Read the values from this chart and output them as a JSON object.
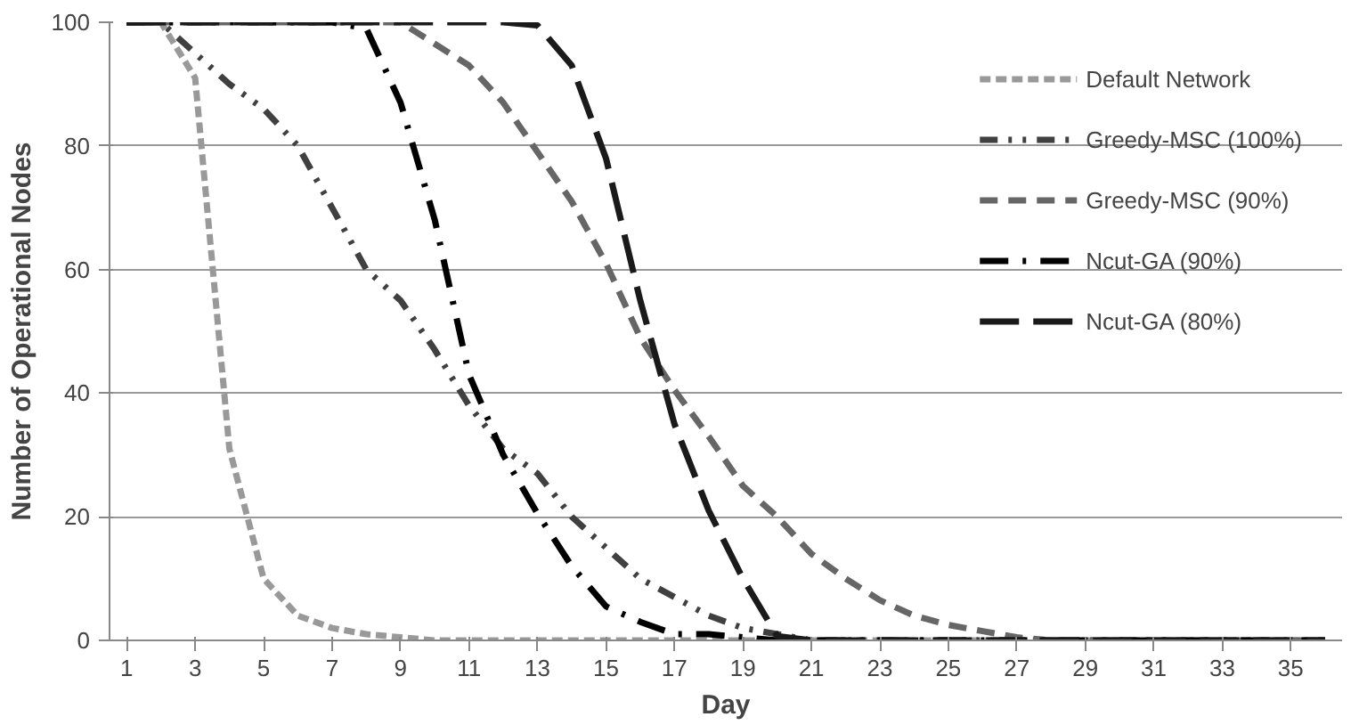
{
  "chart_data": {
    "type": "line",
    "xlabel": "Day",
    "ylabel": "Number of Operational Nodes",
    "x": [
      1,
      2,
      3,
      4,
      5,
      6,
      7,
      8,
      9,
      10,
      11,
      12,
      13,
      14,
      15,
      16,
      17,
      18,
      19,
      20,
      21,
      22,
      23,
      24,
      25,
      26,
      27,
      28,
      29,
      30,
      31,
      32,
      33,
      34,
      35,
      36
    ],
    "xlim": [
      0.5,
      36.5
    ],
    "xticks": [
      1,
      3,
      5,
      7,
      9,
      11,
      13,
      15,
      17,
      19,
      21,
      23,
      25,
      27,
      29,
      31,
      33,
      35
    ],
    "ylim": [
      0,
      100
    ],
    "yticks": [
      0,
      20,
      40,
      60,
      80,
      100
    ],
    "grid": "y",
    "legend": "top right",
    "marker": "none",
    "series": [
      {
        "name": "Default Network",
        "color": "#999999",
        "line_style": "dotted",
        "values": [
          100,
          100,
          91,
          31,
          10,
          4,
          2,
          1,
          0.5,
          0,
          0,
          0,
          0,
          0,
          0,
          0,
          0,
          0,
          0,
          0,
          0,
          0,
          0,
          0,
          0,
          0,
          0,
          0,
          0,
          0,
          0,
          0,
          0,
          0,
          0,
          0
        ]
      },
      {
        "name": "Greedy-MSC (100%)",
        "color": "#404040",
        "line_style": "dashdotdot",
        "values": [
          100,
          100,
          95,
          90,
          86,
          80,
          70,
          60,
          55,
          47,
          38,
          31,
          27,
          20,
          15,
          10,
          7,
          4,
          2,
          1,
          0,
          0,
          0,
          0,
          0,
          0,
          0,
          0,
          0,
          0,
          0,
          0,
          0,
          0,
          0,
          0
        ]
      },
      {
        "name": "Greedy-MSC (90%)",
        "color": "#666666",
        "line_style": "dashed",
        "values": [
          100,
          100,
          100,
          100,
          100,
          100,
          100,
          100,
          100,
          96.5,
          93,
          87,
          79,
          71,
          61,
          49,
          40.5,
          33,
          25,
          20,
          14,
          10,
          6.5,
          4,
          2.5,
          1.5,
          0.5,
          0,
          0,
          0,
          0,
          0,
          0,
          0,
          0,
          0
        ]
      },
      {
        "name": "Ncut-GA (90%)",
        "color": "#000000",
        "line_style": "dashdot",
        "values": [
          100,
          100,
          100,
          100,
          100,
          100,
          100,
          99,
          87,
          68,
          43,
          30,
          20.5,
          12,
          5.5,
          3,
          1,
          1,
          0.5,
          0,
          0,
          0,
          0,
          0,
          0,
          0,
          0,
          0,
          0,
          0,
          0,
          0,
          0,
          0,
          0,
          0
        ]
      },
      {
        "name": "Ncut-GA (80%)",
        "color": "#1a1a1a",
        "line_style": "longdash",
        "values": [
          100,
          100,
          100,
          100,
          100,
          100,
          100,
          100,
          100,
          100,
          100,
          100,
          99.5,
          93,
          78,
          55,
          35,
          21,
          10,
          0.7,
          0,
          0,
          0,
          0,
          0,
          0,
          0,
          0,
          0,
          0,
          0,
          0,
          0,
          0,
          0,
          0
        ]
      }
    ]
  }
}
